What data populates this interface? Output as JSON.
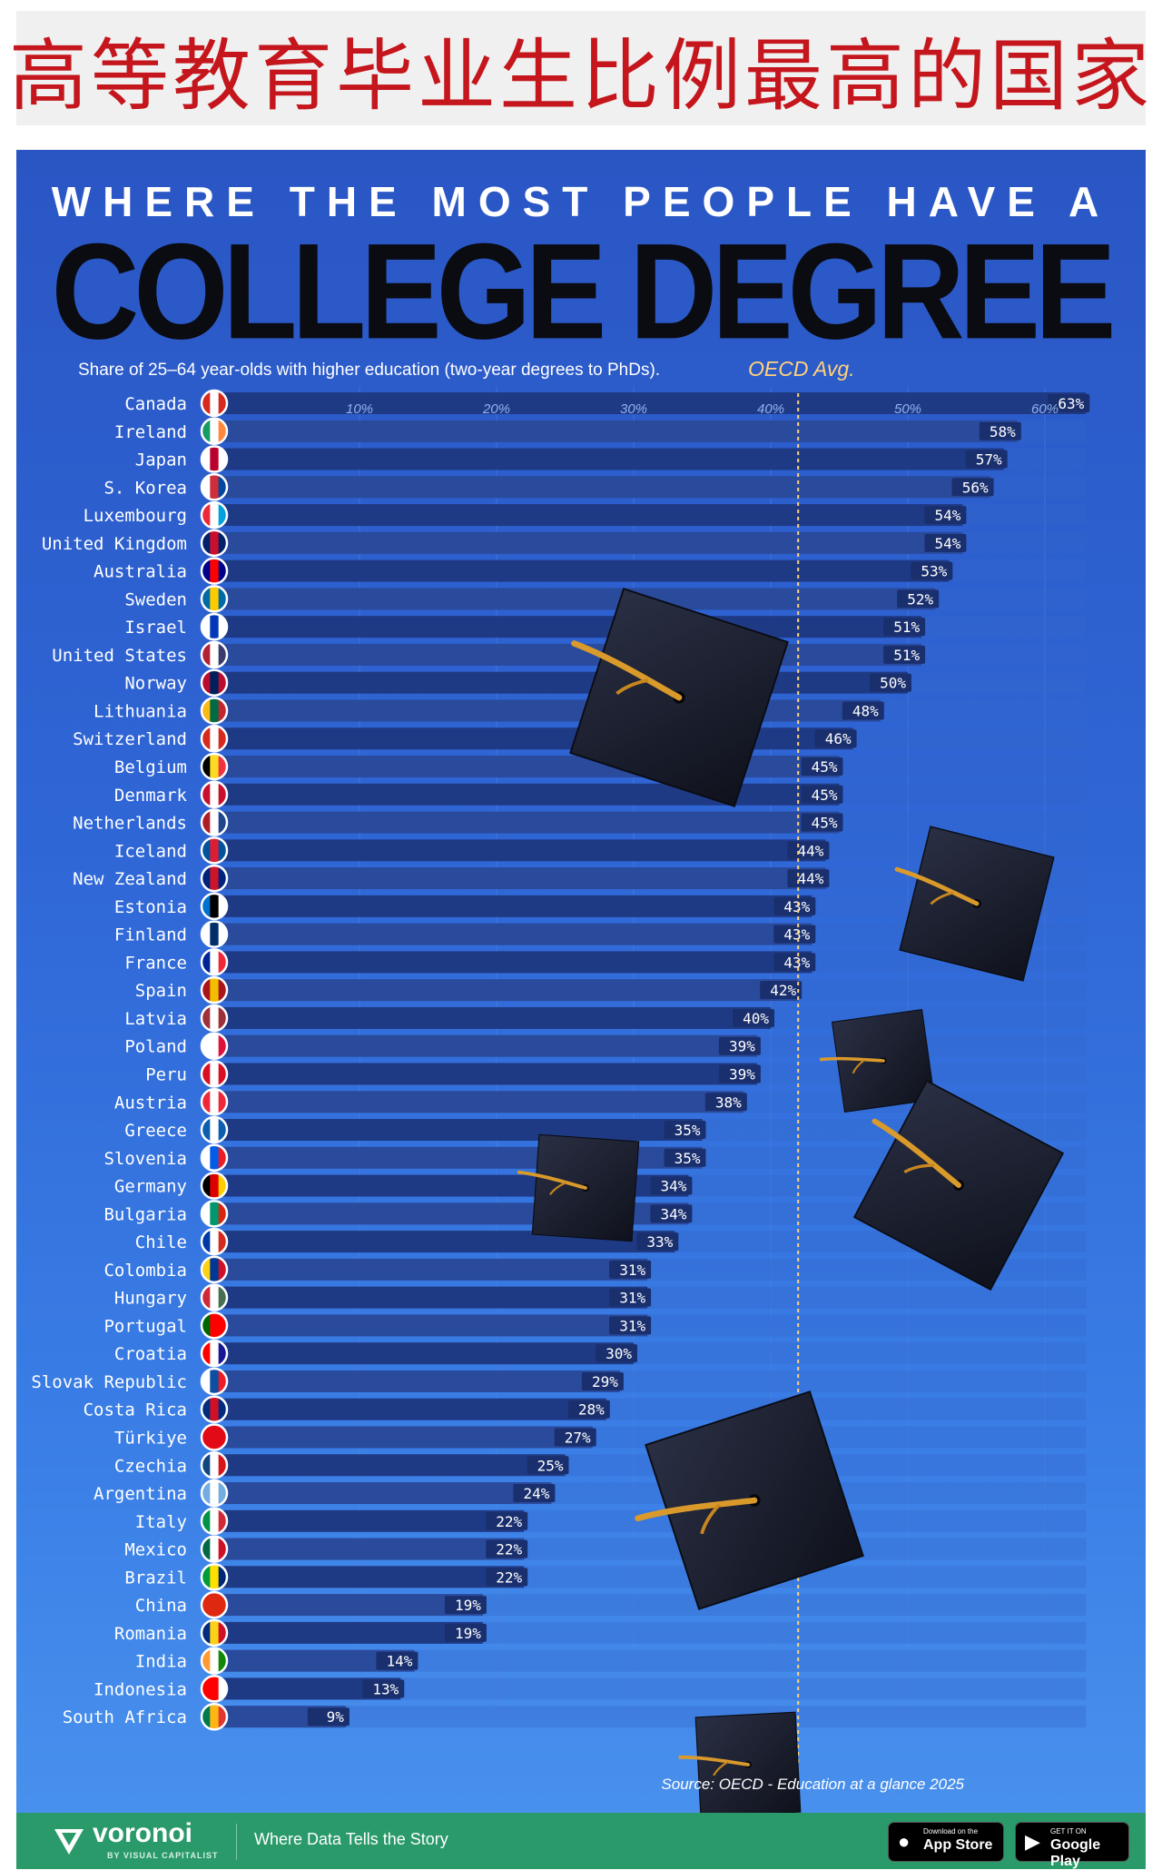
{
  "header_zh": "高等教育毕业生比例最高的国家",
  "poster": {
    "kicker": "WHERE THE MOST PEOPLE HAVE A",
    "headline": "COLLEGE DEGREE",
    "subtitle": "Share of 25–64 year-olds with higher education (two-year degrees to PhDs).",
    "oecd_label": "OECD Avg.",
    "source": "Source: OECD - Education at a glance 2025"
  },
  "footer": {
    "logo": "voronoi",
    "logo_sub": "BY VISUAL CAPITALIST",
    "tagline": "Where Data Tells the Story",
    "appstore_small": "Download on the",
    "appstore_big": "App Store",
    "googleplay_small": "GET IT ON",
    "googleplay_big": "Google Play"
  },
  "colors": {
    "bar": "#1f3a85",
    "bar_alt": "#2a4a9c",
    "label_box": "#1a2f6e",
    "oecd_line": "#ffd27a"
  },
  "chart_data": {
    "type": "bar",
    "orientation": "horizontal",
    "title": "WHERE THE MOST PEOPLE HAVE A COLLEGE DEGREE",
    "subtitle": "Share of 25–64 year-olds with higher education (two-year degrees to PhDs).",
    "xlabel": "",
    "ylabel": "",
    "xlim": [
      0,
      63
    ],
    "x_ticks": [
      "10%",
      "20%",
      "30%",
      "40%",
      "50%",
      "60%"
    ],
    "x_tick_values": [
      10,
      20,
      30,
      40,
      50,
      60
    ],
    "oecd_average": 42,
    "grid": true,
    "legend": "none",
    "categories": [
      "Canada",
      "Ireland",
      "Japan",
      "S. Korea",
      "Luxembourg",
      "United Kingdom",
      "Australia",
      "Sweden",
      "Israel",
      "United States",
      "Norway",
      "Lithuania",
      "Switzerland",
      "Belgium",
      "Denmark",
      "Netherlands",
      "Iceland",
      "New Zealand",
      "Estonia",
      "Finland",
      "France",
      "Spain",
      "Latvia",
      "Poland",
      "Peru",
      "Austria",
      "Greece",
      "Slovenia",
      "Germany",
      "Bulgaria",
      "Chile",
      "Colombia",
      "Hungary",
      "Portugal",
      "Croatia",
      "Slovak Republic",
      "Costa Rica",
      "Türkiye",
      "Czechia",
      "Argentina",
      "Italy",
      "Mexico",
      "Brazil",
      "China",
      "Romania",
      "India",
      "Indonesia",
      "South Africa"
    ],
    "values": [
      63,
      58,
      57,
      56,
      54,
      54,
      53,
      52,
      51,
      51,
      50,
      48,
      46,
      45,
      45,
      45,
      44,
      44,
      43,
      43,
      43,
      42,
      40,
      39,
      39,
      38,
      35,
      35,
      34,
      34,
      33,
      31,
      31,
      31,
      30,
      29,
      28,
      27,
      25,
      24,
      22,
      22,
      22,
      19,
      19,
      14,
      13,
      9
    ],
    "value_labels": [
      "63%",
      "58%",
      "57%",
      "56%",
      "54%",
      "54%",
      "53%",
      "52%",
      "51%",
      "51%",
      "50%",
      "48%",
      "46%",
      "45%",
      "45%",
      "45%",
      "44%",
      "44%",
      "43%",
      "43%",
      "43%",
      "42%",
      "40%",
      "39%",
      "39%",
      "38%",
      "35%",
      "35%",
      "34%",
      "34%",
      "33%",
      "31%",
      "31%",
      "31%",
      "30%",
      "29%",
      "28%",
      "27%",
      "25%",
      "24%",
      "22%",
      "22%",
      "22%",
      "19%",
      "19%",
      "14%",
      "13%",
      "9%"
    ],
    "flag_colors": [
      [
        "#d52b1e",
        "#ffffff",
        "#d52b1e"
      ],
      [
        "#169b62",
        "#ffffff",
        "#ff883e"
      ],
      [
        "#ffffff",
        "#bc002d",
        "#ffffff"
      ],
      [
        "#ffffff",
        "#cd2e3a",
        "#0047a0"
      ],
      [
        "#ed2939",
        "#ffffff",
        "#00a1de"
      ],
      [
        "#012169",
        "#c8102e",
        "#012169"
      ],
      [
        "#00008b",
        "#ff0000",
        "#00008b"
      ],
      [
        "#006aa7",
        "#fecc00",
        "#006aa7"
      ],
      [
        "#ffffff",
        "#0038b8",
        "#ffffff"
      ],
      [
        "#b22234",
        "#ffffff",
        "#3c3b6e"
      ],
      [
        "#ba0c2f",
        "#00205b",
        "#ba0c2f"
      ],
      [
        "#fdb913",
        "#006a44",
        "#c1272d"
      ],
      [
        "#d52b1e",
        "#ffffff",
        "#d52b1e"
      ],
      [
        "#000000",
        "#fdda24",
        "#ef3340"
      ],
      [
        "#c8102e",
        "#ffffff",
        "#c8102e"
      ],
      [
        "#ae1c28",
        "#ffffff",
        "#21468b"
      ],
      [
        "#02529c",
        "#dc1e35",
        "#02529c"
      ],
      [
        "#00247d",
        "#cc142b",
        "#00247d"
      ],
      [
        "#0072ce",
        "#000000",
        "#ffffff"
      ],
      [
        "#ffffff",
        "#002f6c",
        "#ffffff"
      ],
      [
        "#002395",
        "#ffffff",
        "#ed2939"
      ],
      [
        "#aa151b",
        "#f1bf00",
        "#aa151b"
      ],
      [
        "#9e3039",
        "#ffffff",
        "#9e3039"
      ],
      [
        "#ffffff",
        "#ffffff",
        "#dc143c"
      ],
      [
        "#d91023",
        "#ffffff",
        "#d91023"
      ],
      [
        "#ed2939",
        "#ffffff",
        "#ed2939"
      ],
      [
        "#0d5eaf",
        "#ffffff",
        "#0d5eaf"
      ],
      [
        "#ffffff",
        "#005ce5",
        "#ed1c24"
      ],
      [
        "#000000",
        "#dd0000",
        "#ffce00"
      ],
      [
        "#ffffff",
        "#00966e",
        "#d62612"
      ],
      [
        "#0039a6",
        "#ffffff",
        "#d52b1e"
      ],
      [
        "#fcd116",
        "#003893",
        "#ce1126"
      ],
      [
        "#ce2939",
        "#ffffff",
        "#477050"
      ],
      [
        "#006600",
        "#ff0000",
        "#ff0000"
      ],
      [
        "#ff0000",
        "#ffffff",
        "#171796"
      ],
      [
        "#ffffff",
        "#0b4ea2",
        "#ee1c25"
      ],
      [
        "#002b7f",
        "#ce1126",
        "#002b7f"
      ],
      [
        "#e30a17",
        "#e30a17",
        "#e30a17"
      ],
      [
        "#11457e",
        "#ffffff",
        "#d7141a"
      ],
      [
        "#74acdf",
        "#ffffff",
        "#74acdf"
      ],
      [
        "#009246",
        "#ffffff",
        "#ce2b37"
      ],
      [
        "#006847",
        "#ffffff",
        "#ce1126"
      ],
      [
        "#009c3b",
        "#ffdf00",
        "#002776"
      ],
      [
        "#de2910",
        "#de2910",
        "#de2910"
      ],
      [
        "#002b7f",
        "#fcd116",
        "#ce1126"
      ],
      [
        "#ff9933",
        "#ffffff",
        "#138808"
      ],
      [
        "#ff0000",
        "#ff0000",
        "#ffffff"
      ],
      [
        "#007a4d",
        "#ffb612",
        "#de3831"
      ]
    ]
  }
}
